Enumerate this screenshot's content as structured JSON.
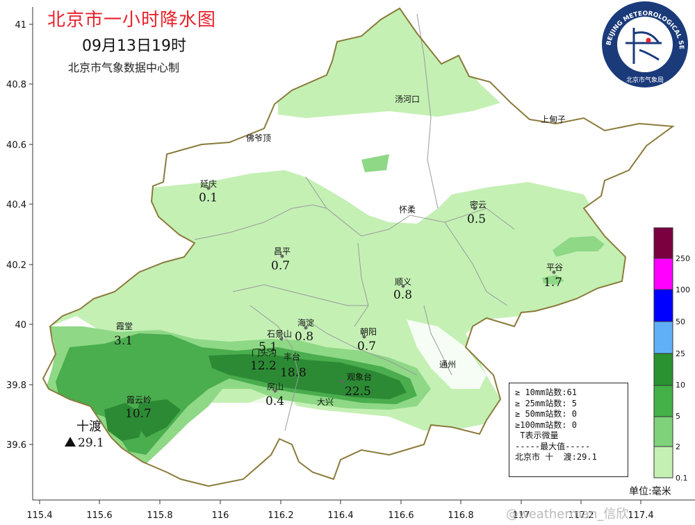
{
  "title": "北京市一小时降水图",
  "time": "09月13日19时",
  "credit": "北京市气象数据中心制",
  "logo": {
    "text_top": "BEIJING METEOROLOGICAL SERVICE",
    "text_bottom": "北京市气象局",
    "colors": {
      "ring": "#1a3a7a",
      "inner": "#ffffff",
      "accent": "#e8202a"
    }
  },
  "lat_ticks": [
    "41",
    "40.8",
    "40.6",
    "40.4",
    "40.2",
    "40",
    "39.8",
    "39.6"
  ],
  "lon_ticks": [
    "115.4",
    "115.6",
    "115.8",
    "116",
    "116.2",
    "116.4",
    "116.6",
    "116.8",
    "117",
    "117.2",
    "117.4"
  ],
  "place_names": [
    {
      "name": "汤河口"
    },
    {
      "name": "上甸子"
    },
    {
      "name": "佛爷顶"
    },
    {
      "name": "延庆"
    },
    {
      "name": "怀柔"
    },
    {
      "name": "密云"
    },
    {
      "name": "昌平"
    },
    {
      "name": "平谷"
    },
    {
      "name": "顺义"
    },
    {
      "name": "霞堂"
    },
    {
      "name": "石景山"
    },
    {
      "name": "海淀"
    },
    {
      "name": "朝阳"
    },
    {
      "name": "门头沟"
    },
    {
      "name": "丰台"
    },
    {
      "name": "通州"
    },
    {
      "name": "观象台"
    },
    {
      "name": "房山"
    },
    {
      "name": "大兴"
    },
    {
      "name": "霞云岭"
    },
    {
      "name": "十渡"
    }
  ],
  "station_values": [
    "0.1",
    "0.5",
    "0.7",
    "1.7",
    "0.8",
    "3.1",
    "5.1",
    "0.8",
    "0.7",
    "12.2",
    "18.8",
    "22.5",
    "0.4",
    "10.7",
    "29.1"
  ],
  "stats": {
    "line1": "≥ 10mm站数:61",
    "line2": "≥ 25mm站数: 5",
    "line3": "≥ 50mm站数: 0",
    "line4": "≥100mm站数: 0",
    "line5": " T表示微量",
    "line6": "-----最大值-----",
    "line7": "北京市 十  渡:29.1"
  },
  "legend": {
    "labels": [
      "250",
      "100",
      "50",
      "25",
      "10",
      "5",
      "2",
      "0.1"
    ],
    "colors": [
      "#7a0040",
      "#ff00ff",
      "#0000ff",
      "#5fb0f7",
      "#2a9230",
      "#44b048",
      "#7fd27a",
      "#c4f0b4"
    ]
  },
  "unit": "单位:毫米",
  "watermark": "@weatherman_信欣",
  "colors": {
    "border": "#8a7a3a",
    "district": "#9a9a9a",
    "light": "#c4f0b4",
    "mid": "#8ed886",
    "dark": "#4aad4e",
    "darkest": "#2c8a34",
    "blue": "#5fb0f7",
    "frame": "#333333"
  }
}
